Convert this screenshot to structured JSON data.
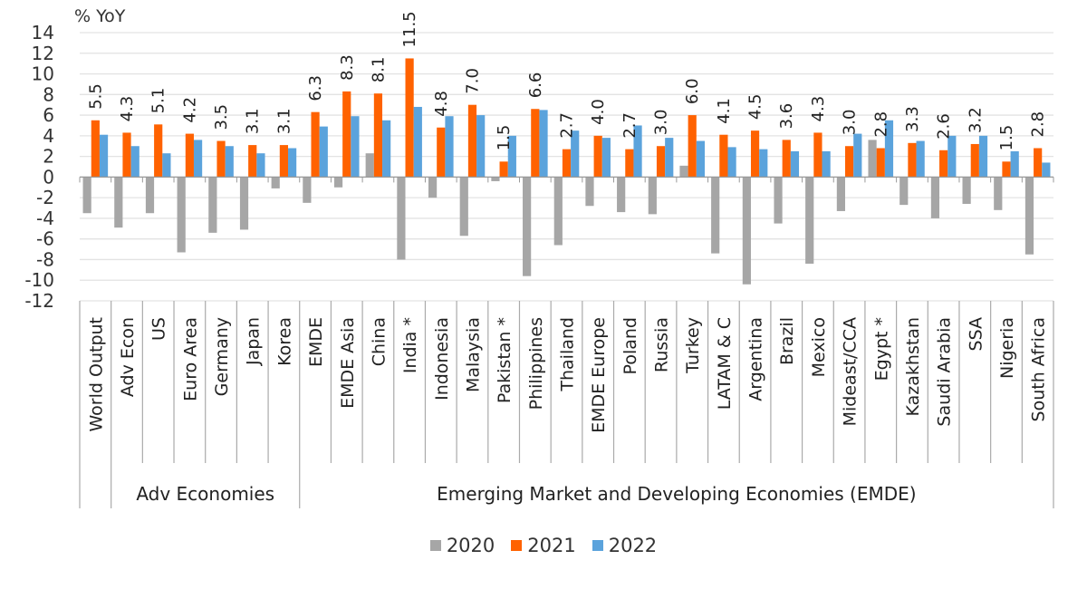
{
  "chart_data": {
    "type": "bar",
    "ylabel": "% YoY",
    "ylim": [
      -12,
      14
    ],
    "yticks": [
      14,
      12,
      10,
      8,
      6,
      4,
      2,
      0,
      -2,
      -4,
      -6,
      -8,
      -10,
      -12
    ],
    "grid": true,
    "legend_position": "bottom",
    "categories": [
      "World Output",
      "Adv Econ",
      "US",
      "Euro Area",
      "Germany",
      "Japan",
      "Korea",
      "EMDE",
      "EMDE Asia",
      "China",
      "India *",
      "Indonesia",
      "Malaysia",
      "Pakistan *",
      "Philippines",
      "Thailand",
      "EMDE Europe",
      "Poland",
      "Russia",
      "Turkey",
      "LATAM & C",
      "Argentina",
      "Brazil",
      "Mexico",
      "Mideast/CCA",
      "Egypt *",
      "Kazakhstan",
      "Saudi Arabia",
      "SSA",
      "Nigeria",
      "South Africa"
    ],
    "groups": [
      {
        "label": "",
        "categories": [
          "World Output"
        ]
      },
      {
        "label": "Adv Economies",
        "categories": [
          "Adv Econ",
          "US",
          "Euro Area",
          "Germany",
          "Japan",
          "Korea"
        ]
      },
      {
        "label": "Emerging Market and Developing Economies (EMDE)",
        "categories": [
          "EMDE",
          "EMDE Asia",
          "China",
          "India *",
          "Indonesia",
          "Malaysia",
          "Pakistan *",
          "Philippines",
          "Thailand",
          "EMDE Europe",
          "Poland",
          "Russia",
          "Turkey",
          "LATAM & C",
          "Argentina",
          "Brazil",
          "Mexico",
          "Mideast/CCA",
          "Egypt *",
          "Kazakhstan",
          "Saudi Arabia",
          "SSA",
          "Nigeria",
          "South Africa"
        ]
      }
    ],
    "series": [
      {
        "name": "2020",
        "color": "#a6a6a6",
        "values": [
          -3.5,
          -4.9,
          -3.5,
          -7.3,
          -5.4,
          -5.1,
          -1.1,
          -2.5,
          -1.0,
          2.3,
          -8.0,
          -2.0,
          -5.7,
          -0.4,
          -9.6,
          -6.6,
          -2.8,
          -3.4,
          -3.6,
          1.1,
          -7.4,
          -10.4,
          -4.5,
          -8.4,
          -3.3,
          3.6,
          -2.7,
          -4.0,
          -2.6,
          -3.2,
          -7.5
        ]
      },
      {
        "name": "2021",
        "color": "#ff6200",
        "values": [
          5.5,
          4.3,
          5.1,
          4.2,
          3.5,
          3.1,
          3.1,
          6.3,
          8.3,
          8.1,
          11.5,
          4.8,
          7.0,
          1.5,
          6.6,
          2.7,
          4.0,
          2.7,
          3.0,
          6.0,
          4.1,
          4.5,
          3.6,
          4.3,
          3.0,
          2.8,
          3.3,
          2.6,
          3.2,
          1.5,
          2.8
        ],
        "data_labels": [
          "5.5",
          "4.3",
          "5.1",
          "4.2",
          "3.5",
          "3.1",
          "3.1",
          "6.3",
          "8.3",
          "8.1",
          "11.5",
          "4.8",
          "7.0",
          "1.5",
          "6.6",
          "2.7",
          "4.0",
          "2.7",
          "3.0",
          "6.0",
          "4.1",
          "4.5",
          "3.6",
          "4.3",
          "3.0",
          "2.8",
          "3.3",
          "2.6",
          "3.2",
          "1.5",
          "2.8"
        ]
      },
      {
        "name": "2022",
        "color": "#5ba3dc",
        "values": [
          4.1,
          3.0,
          2.3,
          3.6,
          3.0,
          2.3,
          2.8,
          4.9,
          5.9,
          5.5,
          6.8,
          5.9,
          6.0,
          4.0,
          6.5,
          4.5,
          3.8,
          5.0,
          3.8,
          3.5,
          2.9,
          2.7,
          2.5,
          2.5,
          4.2,
          5.5,
          3.5,
          4.0,
          4.0,
          2.5,
          1.4
        ]
      }
    ]
  }
}
